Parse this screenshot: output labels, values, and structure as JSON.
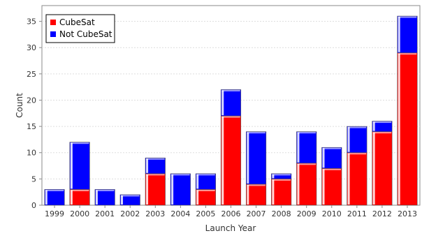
{
  "chart_data": {
    "type": "bar",
    "stacked": true,
    "categories": [
      "1999",
      "2000",
      "2001",
      "2002",
      "2003",
      "2004",
      "2005",
      "2006",
      "2007",
      "2008",
      "2009",
      "2010",
      "2011",
      "2012",
      "2013"
    ],
    "series": [
      {
        "name": "CubeSat",
        "color": "#ff0000",
        "values": [
          0,
          3,
          0,
          0,
          6,
          0,
          3,
          17,
          4,
          5,
          8,
          7,
          10,
          14,
          29
        ]
      },
      {
        "name": "Not CubeSat",
        "color": "#0000ff",
        "values": [
          3,
          9,
          3,
          2,
          3,
          6,
          3,
          5,
          10,
          1,
          6,
          4,
          5,
          2,
          7
        ]
      }
    ],
    "title": "",
    "xlabel": "Launch Year",
    "ylabel": "Count",
    "ylim": [
      0,
      38
    ],
    "yticks": [
      0,
      5,
      10,
      15,
      20,
      25,
      30,
      35
    ],
    "grid": true,
    "legend_position": "top-left"
  }
}
